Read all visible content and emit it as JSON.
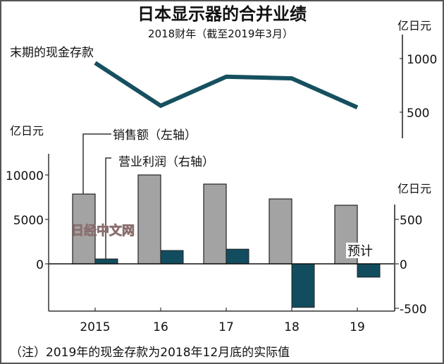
{
  "chart_data": {
    "type": "bar",
    "title": "日本显示器的合并业绩",
    "subtitle": "2018财年（截至2019年3月）",
    "categories": [
      "2015",
      "16",
      "17",
      "18",
      "19"
    ],
    "series": [
      {
        "name": "销售额（左轴）",
        "axis": "left",
        "values": [
          7850,
          10000,
          8970,
          7300,
          6590
        ],
        "color": "#a3a3a3"
      },
      {
        "name": "营业利润（右轴）",
        "axis": "right",
        "values": [
          55,
          150,
          165,
          -490,
          -150
        ],
        "color": "#114d5e"
      }
    ],
    "line_series": {
      "name": "末期的现金存款",
      "values": [
        960,
        560,
        830,
        815,
        545
      ],
      "color": "#16505f",
      "axis_unit": "亿日元",
      "ticks": [
        "1000",
        "500"
      ],
      "tick_values": [
        1000,
        500
      ],
      "ylim": [
        350,
        1120
      ]
    },
    "left_axis": {
      "unit": "亿日元",
      "ticks": [
        "10000",
        "5000",
        "0"
      ],
      "tick_values": [
        10000,
        5000,
        0
      ],
      "ylim": [
        -5000,
        11000
      ]
    },
    "right_axis": {
      "unit": "亿日元",
      "ticks": [
        "500",
        "0",
        "-500"
      ],
      "tick_values": [
        500,
        0,
        -500
      ],
      "ylim": [
        -500,
        1100
      ]
    },
    "annotations": {
      "forecast": "预计",
      "watermark": "日经中文网"
    },
    "note": "（注）2019年的现金存款为2018年12月底的实际值"
  }
}
